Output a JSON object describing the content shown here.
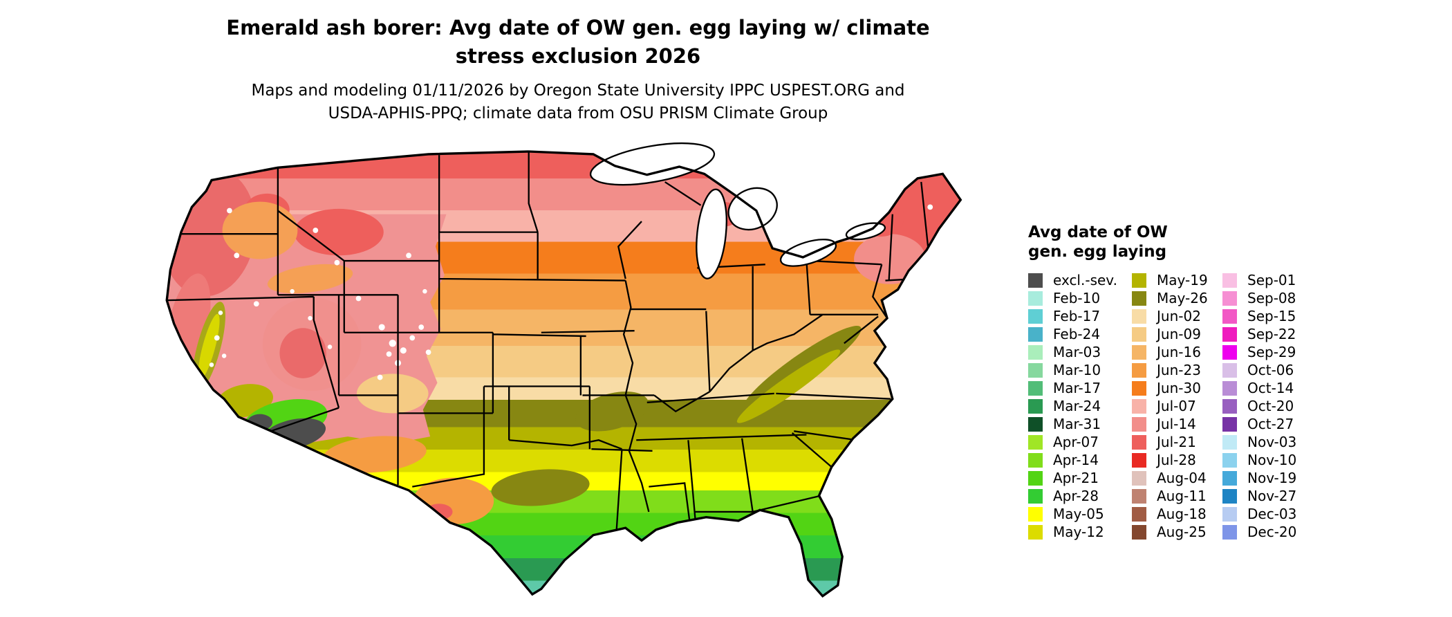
{
  "header": {
    "title_line1": "Emerald ash borer: Avg date of OW gen. egg laying w/ climate",
    "title_line2": "stress exclusion 2026",
    "subtitle_line1": "Maps and modeling 01/11/2026 by Oregon State University IPPC USPEST.ORG and",
    "subtitle_line2": "USDA-APHIS-PPQ; climate data from OSU PRISM Climate Group"
  },
  "legend": {
    "title_line1": "Avg date of OW",
    "title_line2": "gen. egg laying",
    "columns": [
      {
        "entries": [
          {
            "label": "excl.-sev.",
            "color": "#4d4d4d"
          },
          {
            "label": "Feb-10",
            "color": "#a8ecdd"
          },
          {
            "label": "Feb-17",
            "color": "#5fcfd4"
          },
          {
            "label": "Feb-24",
            "color": "#49b2c9"
          },
          {
            "label": "Mar-03",
            "color": "#aaeebb"
          },
          {
            "label": "Mar-10",
            "color": "#86d89e"
          },
          {
            "label": "Mar-17",
            "color": "#52bd78"
          },
          {
            "label": "Mar-24",
            "color": "#2a9a52"
          },
          {
            "label": "Mar-31",
            "color": "#0f5028"
          },
          {
            "label": "Apr-07",
            "color": "#a0e626"
          },
          {
            "label": "Apr-14",
            "color": "#80dd1a"
          },
          {
            "label": "Apr-21",
            "color": "#52d414"
          },
          {
            "label": "Apr-28",
            "color": "#33cc33"
          },
          {
            "label": "May-05",
            "color": "#ffff00"
          },
          {
            "label": "May-12",
            "color": "#dcdc00"
          }
        ]
      },
      {
        "entries": [
          {
            "label": "May-19",
            "color": "#b4b400"
          },
          {
            "label": "May-26",
            "color": "#878712"
          },
          {
            "label": "Jun-02",
            "color": "#f8dca6"
          },
          {
            "label": "Jun-09",
            "color": "#f5cb84"
          },
          {
            "label": "Jun-16",
            "color": "#f5b566"
          },
          {
            "label": "Jun-23",
            "color": "#f59c42"
          },
          {
            "label": "Jun-30",
            "color": "#f57d1c"
          },
          {
            "label": "Jul-07",
            "color": "#f8b2a8"
          },
          {
            "label": "Jul-14",
            "color": "#f28e8a"
          },
          {
            "label": "Jul-21",
            "color": "#ee5f5c"
          },
          {
            "label": "Jul-28",
            "color": "#e92a23"
          },
          {
            "label": "Aug-04",
            "color": "#e0c2bb"
          },
          {
            "label": "Aug-11",
            "color": "#bf8271"
          },
          {
            "label": "Aug-18",
            "color": "#a15c44"
          },
          {
            "label": "Aug-25",
            "color": "#83472e"
          }
        ]
      },
      {
        "entries": [
          {
            "label": "Sep-01",
            "color": "#f9bfe3"
          },
          {
            "label": "Sep-08",
            "color": "#f68fd3"
          },
          {
            "label": "Sep-15",
            "color": "#f258c5"
          },
          {
            "label": "Sep-22",
            "color": "#ef1cbe"
          },
          {
            "label": "Sep-29",
            "color": "#ee00ee"
          },
          {
            "label": "Oct-06",
            "color": "#d9bfe7"
          },
          {
            "label": "Oct-14",
            "color": "#b98dd6"
          },
          {
            "label": "Oct-20",
            "color": "#985fc0"
          },
          {
            "label": "Oct-27",
            "color": "#7733a6"
          },
          {
            "label": "Nov-03",
            "color": "#c0eaf6"
          },
          {
            "label": "Nov-10",
            "color": "#8cd2ee"
          },
          {
            "label": "Nov-19",
            "color": "#45a9da"
          },
          {
            "label": "Nov-27",
            "color": "#1e84c4"
          },
          {
            "label": "Dec-03",
            "color": "#b7ccf2"
          },
          {
            "label": "Dec-20",
            "color": "#7e95e8"
          }
        ]
      }
    ]
  },
  "map": {
    "region": "Continental United States",
    "outline_color": "#000000",
    "bands": [
      {
        "color": "#ee5f5c",
        "to": 6
      },
      {
        "color": "#f28e8a",
        "to": 13
      },
      {
        "color": "#f8b2a8",
        "to": 20
      },
      {
        "color": "#f57d1c",
        "to": 27
      },
      {
        "color": "#f59c42",
        "to": 35
      },
      {
        "color": "#f5b566",
        "to": 43
      },
      {
        "color": "#f5cb84",
        "to": 50
      },
      {
        "color": "#f8dca6",
        "to": 55
      },
      {
        "color": "#878712",
        "to": 61
      },
      {
        "color": "#b4b400",
        "to": 66
      },
      {
        "color": "#dcdc00",
        "to": 71
      },
      {
        "color": "#ffff00",
        "to": 75
      },
      {
        "color": "#80dd1a",
        "to": 80
      },
      {
        "color": "#52d414",
        "to": 85
      },
      {
        "color": "#33cc33",
        "to": 90
      },
      {
        "color": "#2a9a52",
        "to": 95
      },
      {
        "color": "#5ec9a8",
        "to": 100
      }
    ]
  }
}
